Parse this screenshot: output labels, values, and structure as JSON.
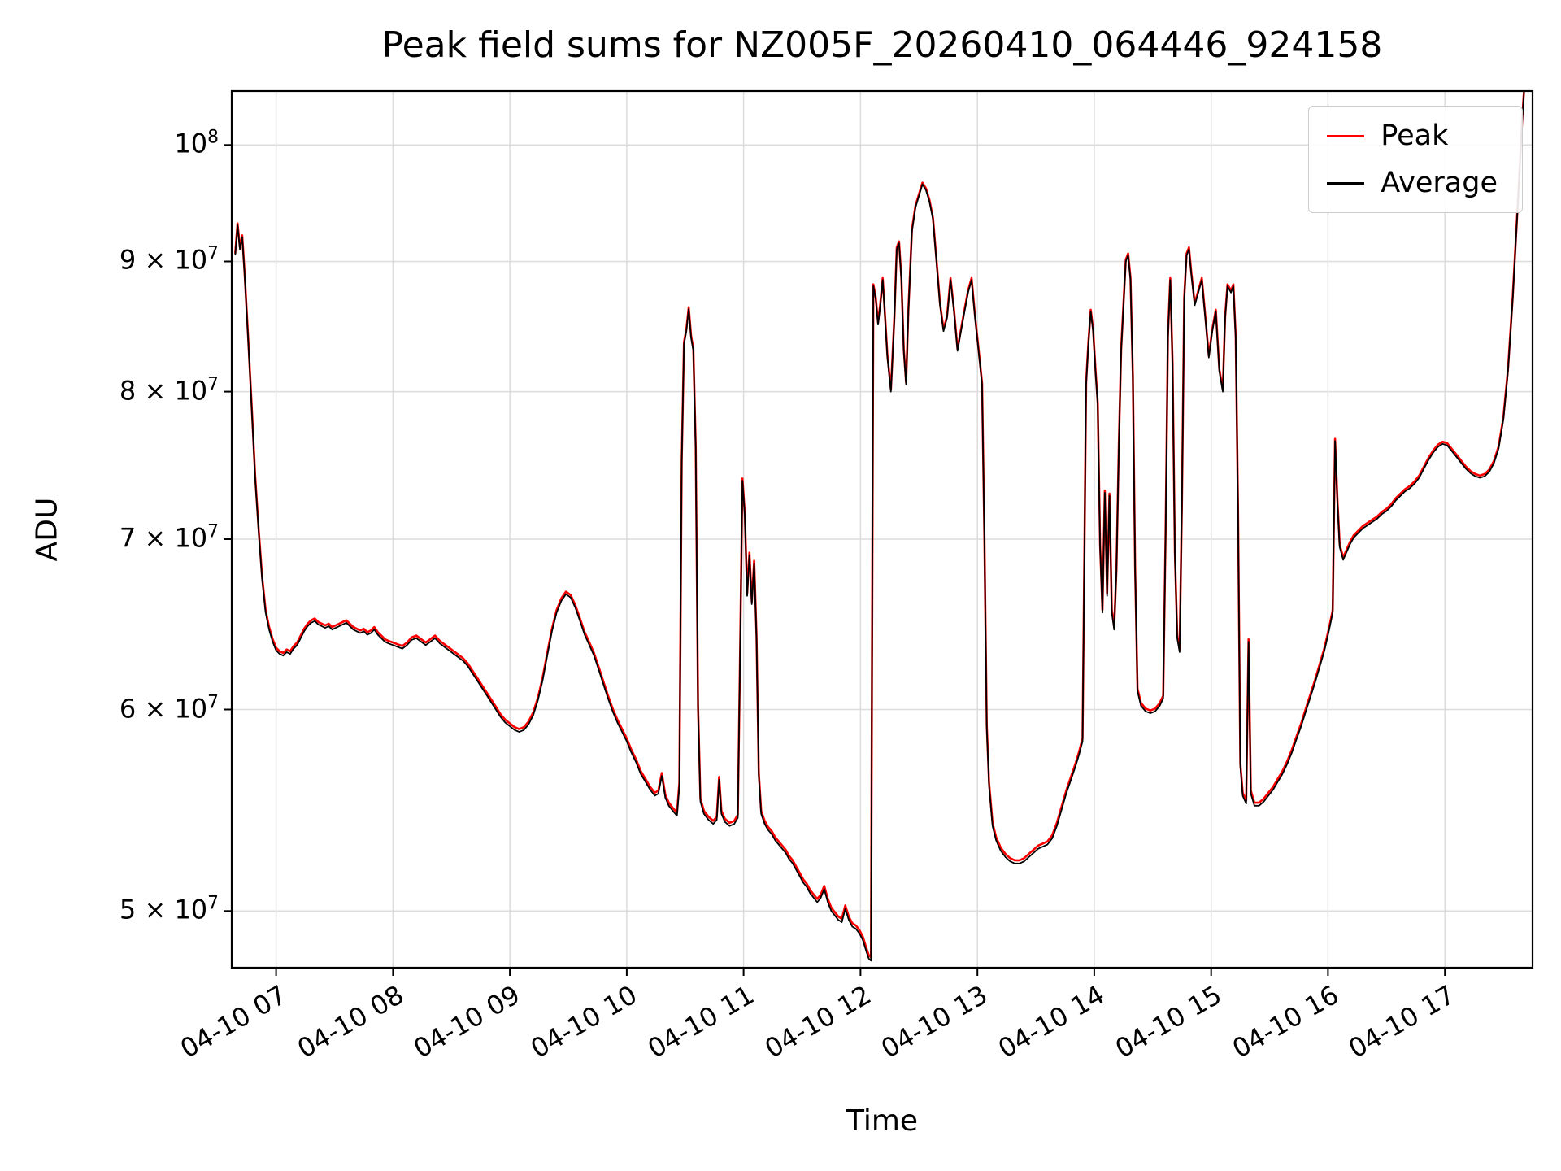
{
  "colors": {
    "peak": "#ff0000",
    "average": "#000000",
    "grid": "#dcdcdc",
    "spine": "#000000",
    "background": "#ffffff"
  },
  "chart_data": {
    "type": "line",
    "title": "Peak field sums for NZ005F_20260410_064446_924158",
    "xlabel": "Time",
    "ylabel": "ADU",
    "yscale": "log",
    "grid": true,
    "legend_position": "upper right",
    "x_unit": "decimal hours on 04-10",
    "unit": 10000000,
    "xlim": [
      6.62,
      17.75
    ],
    "ylim": [
      47500000,
      105000000
    ],
    "xticks": [
      {
        "v": 7,
        "label": "04-10 07"
      },
      {
        "v": 8,
        "label": "04-10 08"
      },
      {
        "v": 9,
        "label": "04-10 09"
      },
      {
        "v": 10,
        "label": "04-10 10"
      },
      {
        "v": 11,
        "label": "04-10 11"
      },
      {
        "v": 12,
        "label": "04-10 12"
      },
      {
        "v": 13,
        "label": "04-10 13"
      },
      {
        "v": 14,
        "label": "04-10 14"
      },
      {
        "v": 15,
        "label": "04-10 15"
      },
      {
        "v": 16,
        "label": "04-10 16"
      },
      {
        "v": 17,
        "label": "04-10 17"
      }
    ],
    "yticks": [
      {
        "v": 50000000,
        "base": "5 × 10",
        "exp": "7"
      },
      {
        "v": 60000000,
        "base": "6 × 10",
        "exp": "7"
      },
      {
        "v": 70000000,
        "base": "7 × 10",
        "exp": "7"
      },
      {
        "v": 80000000,
        "base": "8 × 10",
        "exp": "7"
      },
      {
        "v": 90000000,
        "base": "9 × 10",
        "exp": "7"
      },
      {
        "v": 100000000,
        "base": "10",
        "exp": "8"
      }
    ],
    "series": [
      {
        "name": "Peak",
        "color": "#ff0000",
        "offset": 0.015,
        "width": 2.6
      },
      {
        "name": "Average",
        "color": "#000000",
        "offset": 0,
        "width": 1.8
      }
    ],
    "points": [
      [
        6.65,
        9.05
      ],
      [
        6.67,
        9.3
      ],
      [
        6.69,
        9.1
      ],
      [
        6.71,
        9.2
      ],
      [
        6.73,
        8.9
      ],
      [
        6.76,
        8.4
      ],
      [
        6.79,
        7.9
      ],
      [
        6.82,
        7.4
      ],
      [
        6.85,
        7.05
      ],
      [
        6.88,
        6.75
      ],
      [
        6.91,
        6.55
      ],
      [
        6.94,
        6.45
      ],
      [
        6.97,
        6.38
      ],
      [
        7,
        6.33
      ],
      [
        7.03,
        6.31
      ],
      [
        7.06,
        6.3
      ],
      [
        7.09,
        6.32
      ],
      [
        7.12,
        6.31
      ],
      [
        7.15,
        6.34
      ],
      [
        7.18,
        6.36
      ],
      [
        7.21,
        6.4
      ],
      [
        7.24,
        6.44
      ],
      [
        7.27,
        6.47
      ],
      [
        7.3,
        6.49
      ],
      [
        7.33,
        6.5
      ],
      [
        7.36,
        6.48
      ],
      [
        7.39,
        6.47
      ],
      [
        7.42,
        6.46
      ],
      [
        7.45,
        6.47
      ],
      [
        7.48,
        6.45
      ],
      [
        7.51,
        6.46
      ],
      [
        7.54,
        6.47
      ],
      [
        7.57,
        6.48
      ],
      [
        7.6,
        6.49
      ],
      [
        7.63,
        6.47
      ],
      [
        7.66,
        6.45
      ],
      [
        7.69,
        6.44
      ],
      [
        7.72,
        6.43
      ],
      [
        7.75,
        6.44
      ],
      [
        7.78,
        6.42
      ],
      [
        7.81,
        6.43
      ],
      [
        7.84,
        6.45
      ],
      [
        7.87,
        6.42
      ],
      [
        7.9,
        6.4
      ],
      [
        7.93,
        6.38
      ],
      [
        7.96,
        6.37
      ],
      [
        8,
        6.36
      ],
      [
        8.04,
        6.35
      ],
      [
        8.08,
        6.34
      ],
      [
        8.12,
        6.36
      ],
      [
        8.16,
        6.39
      ],
      [
        8.2,
        6.4
      ],
      [
        8.24,
        6.38
      ],
      [
        8.28,
        6.36
      ],
      [
        8.32,
        6.38
      ],
      [
        8.36,
        6.4
      ],
      [
        8.4,
        6.37
      ],
      [
        8.44,
        6.35
      ],
      [
        8.48,
        6.33
      ],
      [
        8.52,
        6.31
      ],
      [
        8.56,
        6.29
      ],
      [
        8.6,
        6.27
      ],
      [
        8.64,
        6.24
      ],
      [
        8.68,
        6.2
      ],
      [
        8.72,
        6.16
      ],
      [
        8.76,
        6.12
      ],
      [
        8.8,
        6.08
      ],
      [
        8.84,
        6.04
      ],
      [
        8.88,
        6
      ],
      [
        8.92,
        5.96
      ],
      [
        8.96,
        5.93
      ],
      [
        9,
        5.91
      ],
      [
        9.04,
        5.89
      ],
      [
        9.08,
        5.88
      ],
      [
        9.12,
        5.89
      ],
      [
        9.16,
        5.92
      ],
      [
        9.2,
        5.97
      ],
      [
        9.24,
        6.05
      ],
      [
        9.28,
        6.16
      ],
      [
        9.32,
        6.3
      ],
      [
        9.36,
        6.44
      ],
      [
        9.4,
        6.55
      ],
      [
        9.44,
        6.62
      ],
      [
        9.48,
        6.66
      ],
      [
        9.52,
        6.64
      ],
      [
        9.56,
        6.58
      ],
      [
        9.6,
        6.5
      ],
      [
        9.64,
        6.42
      ],
      [
        9.68,
        6.36
      ],
      [
        9.72,
        6.3
      ],
      [
        9.76,
        6.22
      ],
      [
        9.8,
        6.14
      ],
      [
        9.84,
        6.06
      ],
      [
        9.88,
        5.99
      ],
      [
        9.92,
        5.93
      ],
      [
        9.96,
        5.88
      ],
      [
        10,
        5.83
      ],
      [
        10.04,
        5.77
      ],
      [
        10.08,
        5.72
      ],
      [
        10.12,
        5.66
      ],
      [
        10.16,
        5.62
      ],
      [
        10.2,
        5.58
      ],
      [
        10.24,
        5.55
      ],
      [
        10.27,
        5.56
      ],
      [
        10.3,
        5.65
      ],
      [
        10.33,
        5.54
      ],
      [
        10.36,
        5.5
      ],
      [
        10.4,
        5.47
      ],
      [
        10.43,
        5.45
      ],
      [
        10.45,
        5.6
      ],
      [
        10.47,
        7.5
      ],
      [
        10.49,
        8.35
      ],
      [
        10.51,
        8.45
      ],
      [
        10.53,
        8.62
      ],
      [
        10.55,
        8.4
      ],
      [
        10.57,
        8.3
      ],
      [
        10.59,
        7.6
      ],
      [
        10.61,
        6
      ],
      [
        10.63,
        5.52
      ],
      [
        10.66,
        5.46
      ],
      [
        10.7,
        5.43
      ],
      [
        10.74,
        5.41
      ],
      [
        10.77,
        5.43
      ],
      [
        10.79,
        5.63
      ],
      [
        10.81,
        5.46
      ],
      [
        10.84,
        5.42
      ],
      [
        10.88,
        5.4
      ],
      [
        10.92,
        5.41
      ],
      [
        10.95,
        5.44
      ],
      [
        10.97,
        6.3
      ],
      [
        10.99,
        7.38
      ],
      [
        11.01,
        7.15
      ],
      [
        11.03,
        6.65
      ],
      [
        11.05,
        6.9
      ],
      [
        11.07,
        6.6
      ],
      [
        11.09,
        6.85
      ],
      [
        11.11,
        6.4
      ],
      [
        11.13,
        5.65
      ],
      [
        11.15,
        5.46
      ],
      [
        11.18,
        5.41
      ],
      [
        11.21,
        5.38
      ],
      [
        11.24,
        5.36
      ],
      [
        11.27,
        5.33
      ],
      [
        11.3,
        5.31
      ],
      [
        11.33,
        5.29
      ],
      [
        11.36,
        5.27
      ],
      [
        11.39,
        5.24
      ],
      [
        11.42,
        5.22
      ],
      [
        11.45,
        5.19
      ],
      [
        11.48,
        5.16
      ],
      [
        11.51,
        5.13
      ],
      [
        11.54,
        5.11
      ],
      [
        11.57,
        5.08
      ],
      [
        11.6,
        5.06
      ],
      [
        11.63,
        5.04
      ],
      [
        11.66,
        5.06
      ],
      [
        11.69,
        5.1
      ],
      [
        11.72,
        5.04
      ],
      [
        11.75,
        5
      ],
      [
        11.78,
        4.98
      ],
      [
        11.81,
        4.96
      ],
      [
        11.84,
        4.95
      ],
      [
        11.87,
        5.01
      ],
      [
        11.9,
        4.96
      ],
      [
        11.93,
        4.93
      ],
      [
        11.96,
        4.92
      ],
      [
        11.99,
        4.9
      ],
      [
        12.02,
        4.87
      ],
      [
        12.05,
        4.82
      ],
      [
        12.07,
        4.79
      ],
      [
        12.09,
        4.78
      ],
      [
        12.11,
        8.8
      ],
      [
        12.13,
        8.7
      ],
      [
        12.15,
        8.5
      ],
      [
        12.17,
        8.65
      ],
      [
        12.19,
        8.85
      ],
      [
        12.21,
        8.55
      ],
      [
        12.23,
        8.25
      ],
      [
        12.26,
        8
      ],
      [
        12.29,
        8.55
      ],
      [
        12.31,
        9.1
      ],
      [
        12.33,
        9.15
      ],
      [
        12.35,
        8.85
      ],
      [
        12.37,
        8.3
      ],
      [
        12.39,
        8.05
      ],
      [
        12.41,
        8.6
      ],
      [
        12.44,
        9.25
      ],
      [
        12.47,
        9.45
      ],
      [
        12.5,
        9.55
      ],
      [
        12.53,
        9.65
      ],
      [
        12.56,
        9.6
      ],
      [
        12.59,
        9.5
      ],
      [
        12.62,
        9.35
      ],
      [
        12.65,
        9
      ],
      [
        12.68,
        8.65
      ],
      [
        12.71,
        8.45
      ],
      [
        12.74,
        8.55
      ],
      [
        12.77,
        8.85
      ],
      [
        12.8,
        8.6
      ],
      [
        12.83,
        8.3
      ],
      [
        12.86,
        8.45
      ],
      [
        12.89,
        8.6
      ],
      [
        12.92,
        8.75
      ],
      [
        12.95,
        8.85
      ],
      [
        12.98,
        8.55
      ],
      [
        13.01,
        8.3
      ],
      [
        13.04,
        8.05
      ],
      [
        13.06,
        7
      ],
      [
        13.08,
        5.9
      ],
      [
        13.1,
        5.6
      ],
      [
        13.13,
        5.4
      ],
      [
        13.16,
        5.33
      ],
      [
        13.2,
        5.28
      ],
      [
        13.24,
        5.25
      ],
      [
        13.28,
        5.23
      ],
      [
        13.32,
        5.22
      ],
      [
        13.36,
        5.22
      ],
      [
        13.4,
        5.23
      ],
      [
        13.44,
        5.25
      ],
      [
        13.48,
        5.27
      ],
      [
        13.52,
        5.29
      ],
      [
        13.56,
        5.3
      ],
      [
        13.6,
        5.31
      ],
      [
        13.64,
        5.34
      ],
      [
        13.68,
        5.4
      ],
      [
        13.72,
        5.48
      ],
      [
        13.76,
        5.56
      ],
      [
        13.8,
        5.63
      ],
      [
        13.84,
        5.7
      ],
      [
        13.87,
        5.76
      ],
      [
        13.9,
        5.83
      ],
      [
        13.93,
        8.05
      ],
      [
        13.95,
        8.35
      ],
      [
        13.97,
        8.6
      ],
      [
        13.99,
        8.45
      ],
      [
        14.01,
        8.15
      ],
      [
        14.03,
        7.9
      ],
      [
        14.05,
        6.95
      ],
      [
        14.07,
        6.55
      ],
      [
        14.09,
        7.3
      ],
      [
        14.11,
        6.65
      ],
      [
        14.13,
        7.28
      ],
      [
        14.15,
        6.55
      ],
      [
        14.17,
        6.45
      ],
      [
        14.19,
        6.8
      ],
      [
        14.21,
        7.6
      ],
      [
        14.23,
        8.3
      ],
      [
        14.25,
        8.65
      ],
      [
        14.27,
        9
      ],
      [
        14.29,
        9.05
      ],
      [
        14.31,
        8.85
      ],
      [
        14.33,
        8.1
      ],
      [
        14.35,
        6.8
      ],
      [
        14.37,
        6.1
      ],
      [
        14.4,
        6.02
      ],
      [
        14.44,
        5.99
      ],
      [
        14.48,
        5.98
      ],
      [
        14.52,
        5.99
      ],
      [
        14.56,
        6.02
      ],
      [
        14.59,
        6.06
      ],
      [
        14.61,
        7
      ],
      [
        14.63,
        8.4
      ],
      [
        14.65,
        8.85
      ],
      [
        14.67,
        8.2
      ],
      [
        14.69,
        6.9
      ],
      [
        14.71,
        6.4
      ],
      [
        14.73,
        6.32
      ],
      [
        14.75,
        7.2
      ],
      [
        14.77,
        8.7
      ],
      [
        14.79,
        9.05
      ],
      [
        14.81,
        9.1
      ],
      [
        14.83,
        8.9
      ],
      [
        14.86,
        8.65
      ],
      [
        14.89,
        8.75
      ],
      [
        14.92,
        8.85
      ],
      [
        14.95,
        8.55
      ],
      [
        14.98,
        8.25
      ],
      [
        15.01,
        8.45
      ],
      [
        15.04,
        8.6
      ],
      [
        15.07,
        8.15
      ],
      [
        15.1,
        8
      ],
      [
        15.12,
        8.55
      ],
      [
        15.14,
        8.8
      ],
      [
        15.17,
        8.75
      ],
      [
        15.19,
        8.8
      ],
      [
        15.21,
        8.4
      ],
      [
        15.23,
        7.2
      ],
      [
        15.25,
        5.7
      ],
      [
        15.27,
        5.55
      ],
      [
        15.3,
        5.51
      ],
      [
        15.32,
        6.38
      ],
      [
        15.34,
        5.56
      ],
      [
        15.37,
        5.5
      ],
      [
        15.41,
        5.5
      ],
      [
        15.45,
        5.52
      ],
      [
        15.49,
        5.55
      ],
      [
        15.53,
        5.58
      ],
      [
        15.57,
        5.62
      ],
      [
        15.61,
        5.66
      ],
      [
        15.65,
        5.71
      ],
      [
        15.69,
        5.77
      ],
      [
        15.73,
        5.84
      ],
      [
        15.77,
        5.91
      ],
      [
        15.81,
        5.99
      ],
      [
        15.85,
        6.07
      ],
      [
        15.89,
        6.15
      ],
      [
        15.93,
        6.24
      ],
      [
        15.97,
        6.33
      ],
      [
        16.01,
        6.45
      ],
      [
        16.04,
        6.55
      ],
      [
        16.06,
        7.65
      ],
      [
        16.08,
        7.25
      ],
      [
        16.1,
        6.95
      ],
      [
        16.13,
        6.87
      ],
      [
        16.16,
        6.92
      ],
      [
        16.19,
        6.97
      ],
      [
        16.22,
        7.01
      ],
      [
        16.26,
        7.04
      ],
      [
        16.3,
        7.07
      ],
      [
        16.34,
        7.09
      ],
      [
        16.38,
        7.11
      ],
      [
        16.42,
        7.13
      ],
      [
        16.46,
        7.16
      ],
      [
        16.5,
        7.18
      ],
      [
        16.54,
        7.21
      ],
      [
        16.58,
        7.25
      ],
      [
        16.62,
        7.28
      ],
      [
        16.66,
        7.31
      ],
      [
        16.7,
        7.33
      ],
      [
        16.74,
        7.36
      ],
      [
        16.78,
        7.4
      ],
      [
        16.82,
        7.46
      ],
      [
        16.86,
        7.52
      ],
      [
        16.9,
        7.57
      ],
      [
        16.94,
        7.61
      ],
      [
        16.98,
        7.63
      ],
      [
        17.02,
        7.62
      ],
      [
        17.06,
        7.58
      ],
      [
        17.1,
        7.54
      ],
      [
        17.14,
        7.5
      ],
      [
        17.18,
        7.46
      ],
      [
        17.22,
        7.43
      ],
      [
        17.26,
        7.41
      ],
      [
        17.3,
        7.4
      ],
      [
        17.34,
        7.41
      ],
      [
        17.38,
        7.44
      ],
      [
        17.42,
        7.5
      ],
      [
        17.46,
        7.6
      ],
      [
        17.5,
        7.8
      ],
      [
        17.54,
        8.15
      ],
      [
        17.58,
        8.7
      ],
      [
        17.62,
        9.4
      ],
      [
        17.66,
        10.2
      ],
      [
        17.7,
        10.9
      ]
    ]
  }
}
